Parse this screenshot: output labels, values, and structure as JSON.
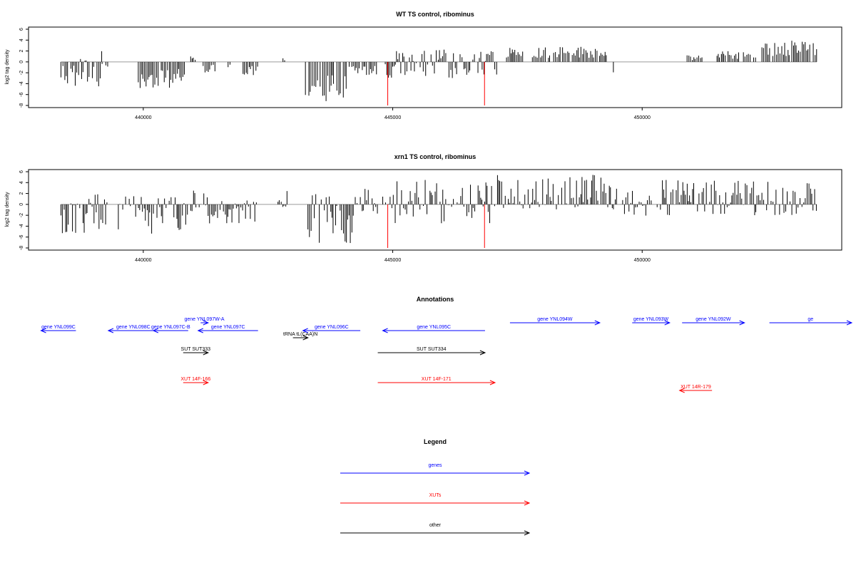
{
  "colors": {
    "gene": "#0000ff",
    "xut": "#ff0000",
    "other": "#000000",
    "bar": "#000000",
    "marker": "#ff0000",
    "baseline": "#9a9a9a"
  },
  "chart_data": [
    {
      "type": "bar",
      "title": "WT TS control, ribominus",
      "ylabel": "log2 tag density",
      "xlim": [
        437700,
        454000
      ],
      "ylim": [
        -8,
        6
      ],
      "yticks": [
        -8,
        -6,
        -4,
        -2,
        0,
        2,
        4,
        6
      ],
      "xticks": [
        440000,
        445000,
        450000
      ],
      "xtick_labels": [
        "440000",
        "445000",
        "450000"
      ],
      "markers": [
        444900,
        446840
      ],
      "segments": [
        {
          "x0": 438350,
          "x1": 439200,
          "lo": -4.5,
          "hi": 0.9
        },
        {
          "x0": 439140,
          "x1": 439170,
          "lo": 0,
          "hi": 2.3
        },
        {
          "x0": 439250,
          "x1": 439300,
          "lo": -1.5,
          "hi": 0
        },
        {
          "x0": 439900,
          "x1": 440850,
          "lo": -4.8,
          "hi": 0
        },
        {
          "x0": 440950,
          "x1": 441050,
          "lo": 0,
          "hi": 1.4
        },
        {
          "x0": 441200,
          "x1": 441450,
          "lo": -2.0,
          "hi": 0
        },
        {
          "x0": 441700,
          "x1": 441760,
          "lo": -1.5,
          "hi": 0
        },
        {
          "x0": 442000,
          "x1": 442300,
          "lo": -2.6,
          "hi": 0
        },
        {
          "x0": 442800,
          "x1": 442850,
          "lo": 0,
          "hi": 0.9
        },
        {
          "x0": 443250,
          "x1": 444100,
          "lo": -7.3,
          "hi": 0
        },
        {
          "x0": 444100,
          "x1": 444700,
          "lo": -2.8,
          "hi": 0
        },
        {
          "x0": 444850,
          "x1": 445500,
          "lo": -3.0,
          "hi": 2.2
        },
        {
          "x0": 445550,
          "x1": 446300,
          "lo": -3.2,
          "hi": 2.4
        },
        {
          "x0": 446350,
          "x1": 447100,
          "lo": -2.6,
          "hi": 2.0
        },
        {
          "x0": 447250,
          "x1": 449300,
          "lo": 0,
          "hi": 2.9
        },
        {
          "x0": 449400,
          "x1": 449450,
          "lo": -2.6,
          "hi": 0
        },
        {
          "x0": 450900,
          "x1": 451200,
          "lo": 0,
          "hi": 1.2
        },
        {
          "x0": 451500,
          "x1": 452300,
          "lo": 0,
          "hi": 2.0
        },
        {
          "x0": 452400,
          "x1": 453500,
          "lo": 0,
          "hi": 4.0
        }
      ]
    },
    {
      "type": "bar",
      "title": "xrn1 TS control, ribominus",
      "ylabel": "log2 tag density",
      "xlim": [
        437700,
        454000
      ],
      "ylim": [
        -8,
        6
      ],
      "yticks": [
        -8,
        -6,
        -4,
        -2,
        0,
        2,
        4,
        6
      ],
      "xticks": [
        440000,
        445000,
        450000
      ],
      "xtick_labels": [
        "440000",
        "445000",
        "450000"
      ],
      "markers": [
        444900,
        446840
      ],
      "segments": [
        {
          "x0": 438350,
          "x1": 439300,
          "lo": -5.5,
          "hi": 2.0
        },
        {
          "x0": 439500,
          "x1": 440900,
          "lo": -5.5,
          "hi": 1.6
        },
        {
          "x0": 440950,
          "x1": 441300,
          "lo": -1.5,
          "hi": 2.8
        },
        {
          "x0": 441300,
          "x1": 442300,
          "lo": -3.5,
          "hi": 0.8
        },
        {
          "x0": 442700,
          "x1": 442900,
          "lo": -0.6,
          "hi": 2.8
        },
        {
          "x0": 443300,
          "x1": 444300,
          "lo": -7.3,
          "hi": 2.0
        },
        {
          "x0": 444350,
          "x1": 444700,
          "lo": -2.0,
          "hi": 3.0
        },
        {
          "x0": 444800,
          "x1": 447050,
          "lo": -3.5,
          "hi": 4.6
        },
        {
          "x0": 447100,
          "x1": 449400,
          "lo": -1.0,
          "hi": 5.6
        },
        {
          "x0": 449400,
          "x1": 450200,
          "lo": -2.5,
          "hi": 3.0
        },
        {
          "x0": 450300,
          "x1": 453500,
          "lo": -2.0,
          "hi": 4.5
        }
      ]
    }
  ],
  "annotations": {
    "title": "Annotations",
    "items": [
      {
        "label": "gene YNL099C",
        "kind": "gene",
        "x0": 438650,
        "x1": 437950,
        "row": "upper"
      },
      {
        "label": "gene YNL098C",
        "kind": "gene",
        "x0": 440300,
        "x1": 439300,
        "row": "upper"
      },
      {
        "label": "gene YNL097C-B",
        "kind": "gene",
        "x0": 440900,
        "x1": 440200,
        "row": "upper"
      },
      {
        "label": "gene YNL097W-A",
        "kind": "gene",
        "x0": 441150,
        "x1": 441300,
        "row": "top"
      },
      {
        "label": "gene YNL097C",
        "kind": "gene",
        "x0": 442300,
        "x1": 441100,
        "row": "upper"
      },
      {
        "label": "tRNA tL(CAA)N",
        "kind": "other",
        "x0": 443000,
        "x1": 443300,
        "row": "mid"
      },
      {
        "label": "gene YNL096C",
        "kind": "gene",
        "x0": 444350,
        "x1": 443200,
        "row": "upper"
      },
      {
        "label": "gene YNL095C",
        "kind": "gene",
        "x0": 446850,
        "x1": 444800,
        "row": "upper"
      },
      {
        "label": "gene YNL094W",
        "kind": "gene",
        "x0": 447350,
        "x1": 449150,
        "row": "top"
      },
      {
        "label": "gene YNL093W",
        "kind": "gene",
        "x0": 449800,
        "x1": 450550,
        "row": "top"
      },
      {
        "label": "gene YNL092W",
        "kind": "gene",
        "x0": 450800,
        "x1": 452050,
        "row": "top"
      },
      {
        "label": "ge",
        "kind": "gene",
        "x0": 452550,
        "x1": 454200,
        "row": "top"
      },
      {
        "label": "SUT SUT333",
        "kind": "other",
        "x0": 440800,
        "x1": 441300,
        "row": "sut"
      },
      {
        "label": "SUT SUT334",
        "kind": "other",
        "x0": 444700,
        "x1": 446850,
        "row": "sut"
      },
      {
        "label": "XUT 14F-166",
        "kind": "xut",
        "x0": 440800,
        "x1": 441300,
        "row": "xut"
      },
      {
        "label": "XUT 14F-171",
        "kind": "xut",
        "x0": 444700,
        "x1": 447050,
        "row": "xut"
      },
      {
        "label": "XUT 14R-179",
        "kind": "xut",
        "x0": 451400,
        "x1": 450750,
        "row": "xut2"
      }
    ]
  },
  "legend": {
    "title": "Legend",
    "items": [
      {
        "label": "genes",
        "kind": "gene"
      },
      {
        "label": "XUTs",
        "kind": "xut"
      },
      {
        "label": "other",
        "kind": "other"
      }
    ]
  }
}
